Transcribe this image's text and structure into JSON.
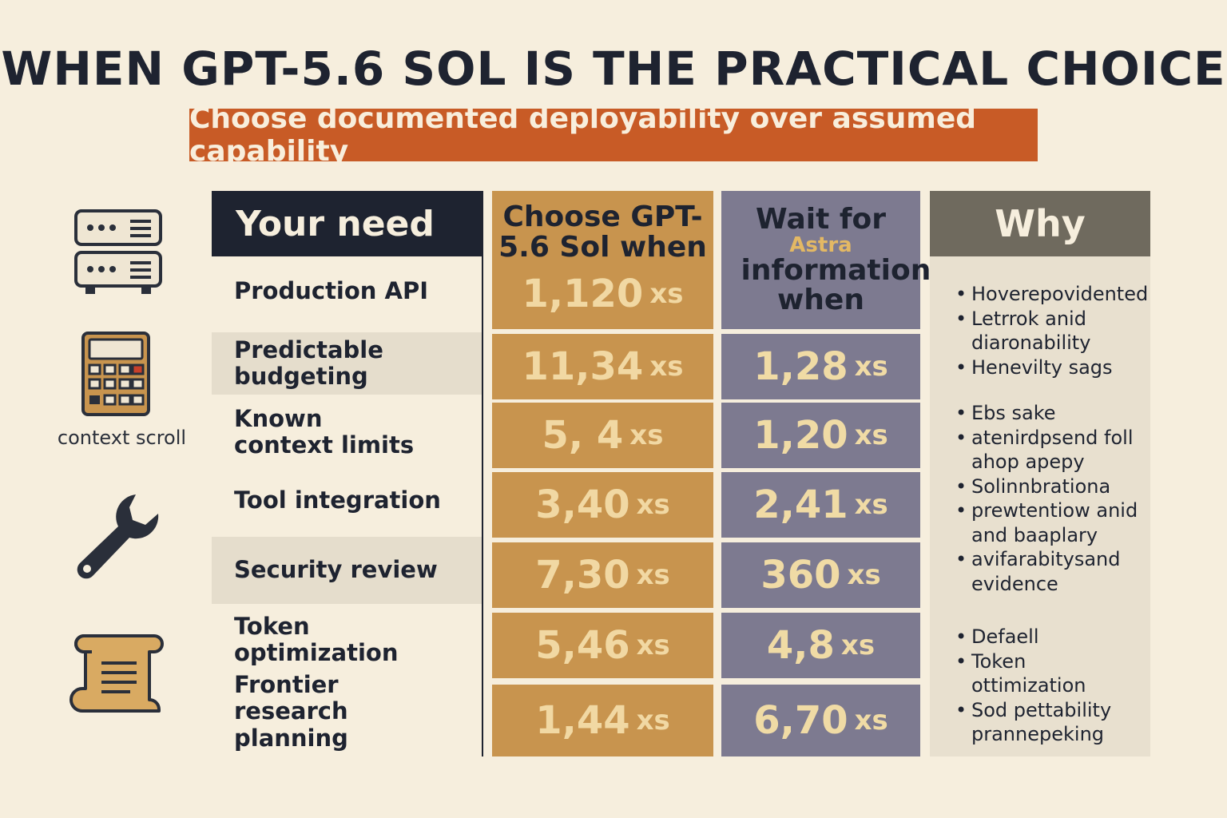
{
  "title": "WHEN GPT-5.6 SOL IS THE PRACTICAL CHOICE",
  "subtitle": "Choose documented deployability over assumed capability",
  "icons": {
    "server": "server-icon",
    "calculator": "calculator-icon",
    "wrench": "wrench-icon",
    "scroll": "scroll-icon",
    "scroll_label": "context scroll"
  },
  "columns": {
    "need": "Your need",
    "sol": "Choose GPT-5.6 Sol when",
    "wait_top": "Wait for",
    "wait_accent": "Astra",
    "wait_bottom": "information when",
    "why": "Why"
  },
  "rows": [
    {
      "need": "Production API",
      "sol_value": "1,120",
      "sol_unit": "xs",
      "wait_value": "",
      "wait_unit": ""
    },
    {
      "need": "Predictable budgeting",
      "sol_value": "11,34",
      "sol_unit": "xs",
      "wait_value": "1,28",
      "wait_unit": "xs"
    },
    {
      "need": "Known context limits",
      "sol_value": "5, 4",
      "sol_unit": "xs",
      "wait_value": "1,20",
      "wait_unit": "xs"
    },
    {
      "need": "Tool integration",
      "sol_value": "3,40",
      "sol_unit": "xs",
      "wait_value": "2,41",
      "wait_unit": "xs"
    },
    {
      "need": "Security review",
      "sol_value": "7,30",
      "sol_unit": "xs",
      "wait_value": "360",
      "wait_unit": "xs"
    },
    {
      "need": "Token optimization",
      "sol_value": "5,46",
      "sol_unit": "xs",
      "wait_value": "4,8",
      "wait_unit": "xs"
    },
    {
      "need": "Frontier research planning",
      "sol_value": "1,44",
      "sol_unit": "xs",
      "wait_value": "6,70",
      "wait_unit": "xs"
    }
  ],
  "why": [
    [
      "Hoverepovidented",
      "Letrrok anid diaronability",
      "Henevilty sags"
    ],
    [
      "Ebs sake",
      "atenirdpsend foll ahop apepy",
      "Solinnbrationa",
      "prewtentiow anid and baaplary",
      "avifarabitysand evidence"
    ],
    [
      "Defaell",
      "Token ottimization",
      "Sod pettability prannepeking"
    ]
  ],
  "colors": {
    "background": "#f6eedd",
    "accent_orange": "#c85b26",
    "header_dark": "#1e2330",
    "sol_column": "#c8944e",
    "wait_column": "#7d7a90",
    "why_header": "#6f6a5e"
  }
}
